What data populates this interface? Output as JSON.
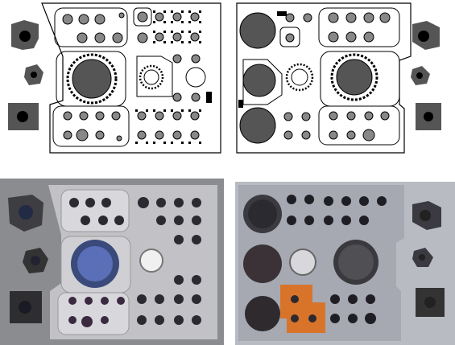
{
  "figure": {
    "panels": [
      {
        "id": "top-left",
        "kind": "schematic",
        "description_name": "left-connector-panel-schematic"
      },
      {
        "id": "top-right",
        "kind": "schematic",
        "description_name": "right-connector-panel-schematic"
      },
      {
        "id": "bottom-left",
        "kind": "photo",
        "description_name": "left-connector-panel-photo"
      },
      {
        "id": "bottom-right",
        "kind": "photo",
        "description_name": "right-connector-panel-photo"
      }
    ]
  },
  "colors": {
    "outline": "#000000",
    "connector_gray": "#6e6e6e",
    "connector_dark": "#505050",
    "photo_bg_left": "#8a8c90",
    "photo_bg_right": "#b9bbc3",
    "blue_dial": "#5b6fb8",
    "orange_mask": "#d8742a"
  }
}
